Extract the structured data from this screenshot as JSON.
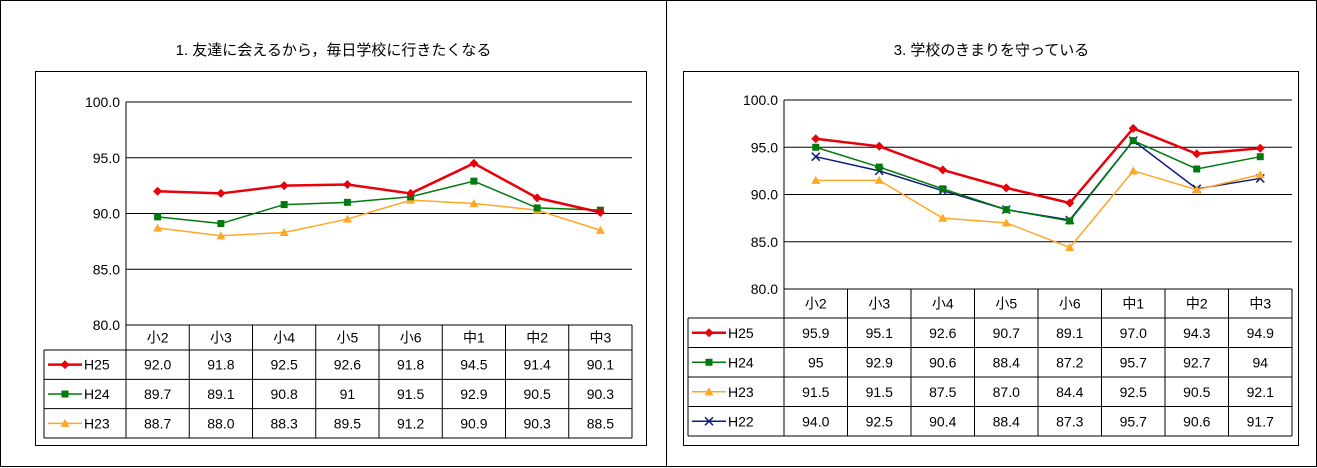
{
  "colors": {
    "H25": "#e8000b",
    "H24": "#007a0c",
    "H23": "#ffa726",
    "H22": "#0c1a7a"
  },
  "chart_data": [
    {
      "type": "line",
      "title": "1. 友達に会えるから，毎日学校に行きたくなる",
      "categories": [
        "小2",
        "小3",
        "小4",
        "小5",
        "小6",
        "中1",
        "中2",
        "中3"
      ],
      "ylim": [
        80.0,
        100.0
      ],
      "yticks": [
        "100.0",
        "95.0",
        "90.0",
        "85.0",
        "80.0"
      ],
      "grid": true,
      "legend": "data-table",
      "series": [
        {
          "name": "H25",
          "values": [
            92.0,
            91.8,
            92.5,
            92.6,
            91.8,
            94.5,
            91.4,
            90.1
          ],
          "labels": [
            "92.0",
            "91.8",
            "92.5",
            "92.6",
            "91.8",
            "94.5",
            "91.4",
            "90.1"
          ],
          "color": "#e8000b",
          "marker": "diamond"
        },
        {
          "name": "H24",
          "values": [
            89.7,
            89.1,
            90.8,
            91.0,
            91.5,
            92.9,
            90.5,
            90.3
          ],
          "labels": [
            "89.7",
            "89.1",
            "90.8",
            "91",
            "91.5",
            "92.9",
            "90.5",
            "90.3"
          ],
          "color": "#007a0c",
          "marker": "square"
        },
        {
          "name": "H23",
          "values": [
            88.7,
            88.0,
            88.3,
            89.5,
            91.2,
            90.9,
            90.3,
            88.5
          ],
          "labels": [
            "88.7",
            "88.0",
            "88.3",
            "89.5",
            "91.2",
            "90.9",
            "90.3",
            "88.5"
          ],
          "color": "#ffa726",
          "marker": "triangle"
        }
      ]
    },
    {
      "type": "line",
      "title": "3. 学校のきまりを守っている",
      "categories": [
        "小2",
        "小3",
        "小4",
        "小5",
        "小6",
        "中1",
        "中2",
        "中3"
      ],
      "ylim": [
        80.0,
        100.0
      ],
      "yticks": [
        "100.0",
        "95.0",
        "90.0",
        "85.0",
        "80.0"
      ],
      "grid": true,
      "legend": "data-table",
      "series": [
        {
          "name": "H25",
          "values": [
            95.9,
            95.1,
            92.6,
            90.7,
            89.1,
            97.0,
            94.3,
            94.9
          ],
          "labels": [
            "95.9",
            "95.1",
            "92.6",
            "90.7",
            "89.1",
            "97.0",
            "94.3",
            "94.9"
          ],
          "color": "#e8000b",
          "marker": "diamond"
        },
        {
          "name": "H24",
          "values": [
            95.0,
            92.9,
            90.6,
            88.4,
            87.2,
            95.7,
            92.7,
            94.0
          ],
          "labels": [
            "95",
            "92.9",
            "90.6",
            "88.4",
            "87.2",
            "95.7",
            "92.7",
            "94"
          ],
          "color": "#007a0c",
          "marker": "square"
        },
        {
          "name": "H23",
          "values": [
            91.5,
            91.5,
            87.5,
            87.0,
            84.4,
            92.5,
            90.5,
            92.1
          ],
          "labels": [
            "91.5",
            "91.5",
            "87.5",
            "87.0",
            "84.4",
            "92.5",
            "90.5",
            "92.1"
          ],
          "color": "#ffa726",
          "marker": "triangle"
        },
        {
          "name": "H22",
          "values": [
            94.0,
            92.5,
            90.4,
            88.4,
            87.3,
            95.7,
            90.6,
            91.7
          ],
          "labels": [
            "94.0",
            "92.5",
            "90.4",
            "88.4",
            "87.3",
            "95.7",
            "90.6",
            "91.7"
          ],
          "color": "#0c1a7a",
          "marker": "x"
        }
      ]
    }
  ]
}
